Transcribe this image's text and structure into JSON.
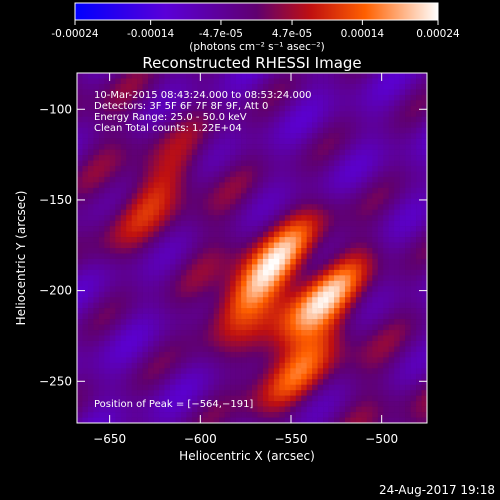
{
  "colorbar": {
    "tick_labels": [
      "-0.00024",
      "-0.00014",
      "-4.7e-05",
      "4.7e-05",
      "0.00014",
      "0.00024"
    ],
    "tick_values": [
      -0.00024,
      -0.00014,
      -4.7e-05,
      4.7e-05,
      0.00014,
      0.00024
    ],
    "range": [
      -0.00024,
      0.00024
    ],
    "unit_label": "(photons cm⁻² s⁻¹ asec⁻²)"
  },
  "chart_data": {
    "type": "heatmap",
    "title": "Reconstructed RHESSI Image",
    "xlabel": "Heliocentric X (arcsec)",
    "ylabel": "Heliocentric Y (arcsec)",
    "xlim": [
      -668,
      -475
    ],
    "ylim": [
      -273,
      -80
    ],
    "x_ticks": [
      -650,
      -600,
      -550,
      -500
    ],
    "x_tick_labels": [
      "−650",
      "−600",
      "−550",
      "−500"
    ],
    "y_ticks": [
      -100,
      -150,
      -200,
      -250
    ],
    "y_tick_labels": [
      "−100",
      "−150",
      "−200",
      "−250"
    ],
    "sources": [
      {
        "x": -564,
        "y": -191,
        "peak": 0.00024
      },
      {
        "x": -536,
        "y": -208,
        "peak": 0.0002
      },
      {
        "x": -548,
        "y": -245,
        "peak": 0.00012
      },
      {
        "x": -630,
        "y": -150,
        "peak": 0.0001
      }
    ],
    "annotations": [
      "10-Mar-2015 08:43:24.000 to 08:53:24.000",
      "Detectors: 3F 5F 6F 7F 8F 9F, Att 0",
      "Energy Range: 25.0 - 50.0 keV",
      "Clean    Total counts: 1.22E+04"
    ],
    "peak_label": "Position of Peak = [−564,−191]"
  },
  "timestamp": "24-Aug-2017 19:18"
}
